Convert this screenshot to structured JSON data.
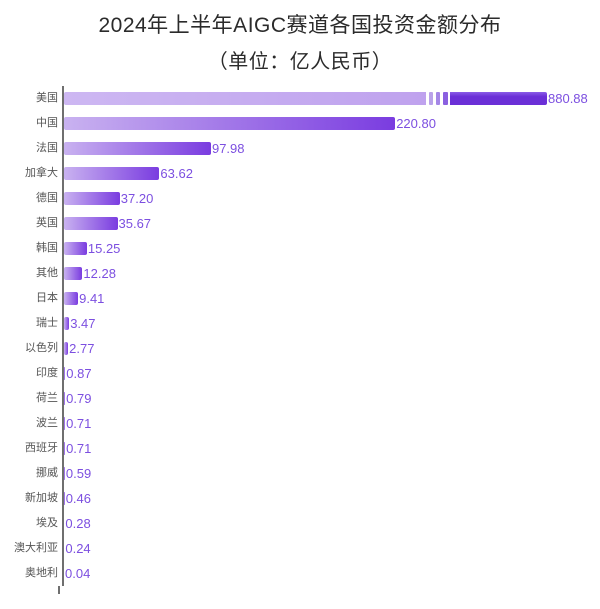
{
  "header": {
    "title": "2024年上半年AIGC赛道各国投资金额分布",
    "subtitle": "（单位：亿人民币）"
  },
  "colors": {
    "bar_gradient_start": "#c9b2f0",
    "bar_gradient_end": "#7a3ce0",
    "us_truncated_light": "#c8b0f0",
    "us_dark_segment": "#6b2fd7",
    "break_ticks": [
      "#b9a2e9",
      "#a486e6",
      "#8b60e0"
    ],
    "value_label": "#7c4fe0",
    "category_label": "#555555",
    "axis_line": "#6f6f6f",
    "title_text": "#2b2b2b",
    "background": "#ffffff"
  },
  "chart_data": {
    "type": "bar",
    "orientation": "horizontal",
    "title": "2024年上半年AIGC赛道各国投资金额分布",
    "subtitle": "（单位：亿人民币）",
    "unit": "亿人民币",
    "xlabel": "",
    "ylabel": "",
    "grid": false,
    "legend": false,
    "categories": [
      "美国",
      "中国",
      "法国",
      "加拿大",
      "德国",
      "英国",
      "韩国",
      "其他",
      "日本",
      "瑞士",
      "以色列",
      "印度",
      "荷兰",
      "波兰",
      "西班牙",
      "挪威",
      "新加坡",
      "埃及",
      "澳大利亚",
      "奥地利"
    ],
    "values": [
      880.88,
      220.8,
      97.98,
      63.62,
      37.2,
      35.67,
      15.25,
      12.28,
      9.41,
      3.47,
      2.77,
      0.87,
      0.79,
      0.71,
      0.71,
      0.59,
      0.46,
      0.28,
      0.24,
      0.04
    ],
    "value_labels": [
      "880.88",
      "220.80",
      "97.98",
      "63.62",
      "37.20",
      "35.67",
      "15.25",
      "12.28",
      "9.41",
      "3.47",
      "2.77",
      "0.87",
      "0.79",
      "0.71",
      "0.71",
      "0.59",
      "0.46",
      "0.28",
      "0.24",
      "0.04"
    ],
    "axis_break": {
      "category": "美国",
      "value": 880.88,
      "shown_as": "truncated bar with three break marks before final dark segment"
    }
  }
}
